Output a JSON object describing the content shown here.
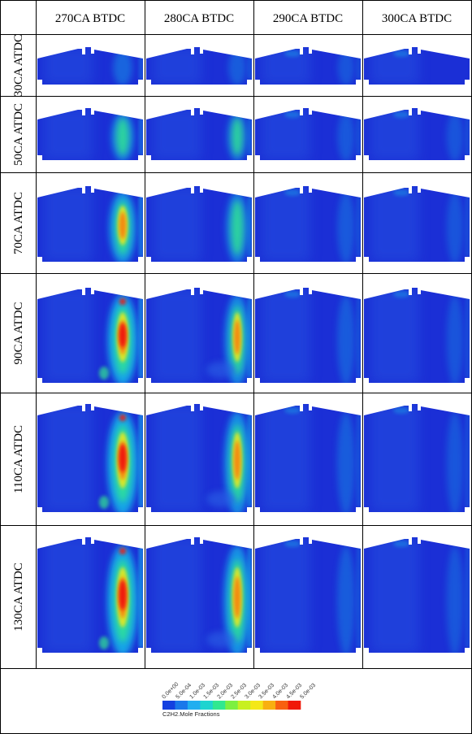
{
  "columns": [
    "270CA BTDC",
    "280CA BTDC",
    "290CA BTDC",
    "300CA BTDC"
  ],
  "rows": [
    "30CA ATDC",
    "50CA ATDC",
    "70CA ATDC",
    "90CA ATDC",
    "110CA ATDC",
    "130CA ATDC"
  ],
  "colorbar": {
    "title": "C2H2.Mole Fractions",
    "ticks": [
      "0.0e+00",
      "5.0e-04",
      "1.0e-03",
      "1.5e-03",
      "2.0e-03",
      "2.5e-03",
      "3.0e-03",
      "3.5e-03",
      "4.0e-03",
      "4.5e-03",
      "5.0e-03"
    ],
    "colors": [
      "#1440e0",
      "#1a78ea",
      "#20aef0",
      "#1ed4d0",
      "#30e890",
      "#7cf040",
      "#c8f020",
      "#f4e818",
      "#f8b010",
      "#f86010",
      "#f01808"
    ]
  },
  "palette": {
    "background": "#1b2fd6",
    "light": "#2c64e6",
    "cyan": "#19c2ec",
    "green": "#30e890",
    "yellow": "#f4e818",
    "orange": "#f88010",
    "red": "#f01808"
  }
}
